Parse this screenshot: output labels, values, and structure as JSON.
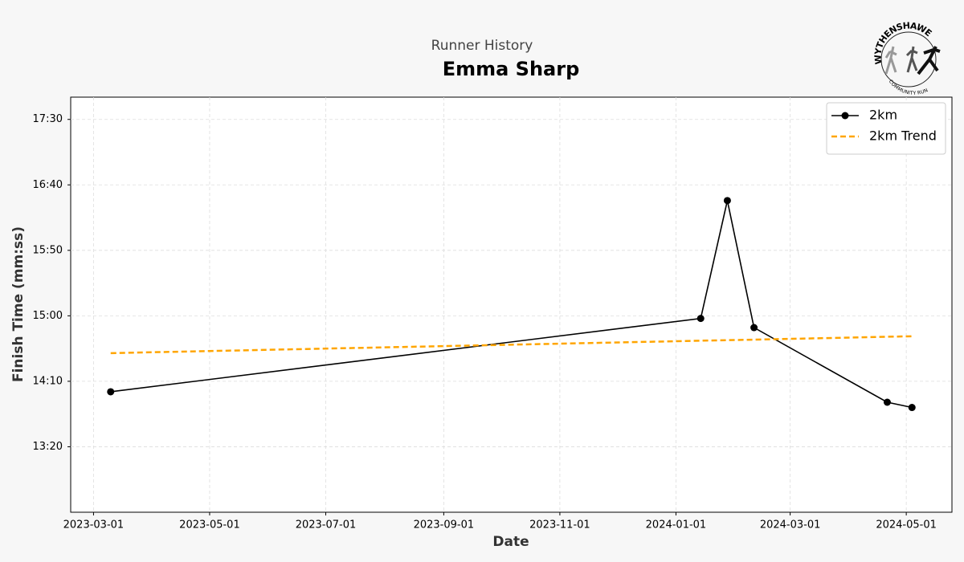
{
  "chart_data": {
    "type": "line",
    "title": "Runner History",
    "subtitle": "Emma Sharp",
    "x_label": "Date",
    "y_label": "Finish Time (mm:ss)",
    "x": [
      "2023-03-10",
      "2024-01-14",
      "2024-01-28",
      "2024-02-11",
      "2024-04-21",
      "2024-05-04"
    ],
    "series": [
      {
        "name": "2km",
        "color": "#000000",
        "style": "solid",
        "marker": true,
        "values": [
          842,
          898,
          988,
          891,
          834,
          830
        ]
      },
      {
        "name": "2km Trend",
        "color": "#ffa500",
        "style": "dashed",
        "marker": false,
        "values": [
          871.5,
          881.0,
          881.4,
          881.8,
          884.0,
          884.4
        ]
      }
    ],
    "xlim": [
      "2023-02-17",
      "2024-05-25"
    ],
    "xticks": [
      "2023-03-01",
      "2023-05-01",
      "2023-07-01",
      "2023-09-01",
      "2023-11-01",
      "2024-01-01",
      "2024-03-01",
      "2024-05-01"
    ],
    "ylim": [
      750,
      1067
    ],
    "yticks": [
      {
        "value": 800,
        "label": "13:20"
      },
      {
        "value": 850,
        "label": "14:10"
      },
      {
        "value": 900,
        "label": "15:00"
      },
      {
        "value": 950,
        "label": "15:50"
      },
      {
        "value": 1000,
        "label": "16:40"
      },
      {
        "value": 1050,
        "label": "17:30"
      }
    ],
    "grid": true,
    "legend": "upper right"
  },
  "logo_text": [
    "WYTHENSHAWE",
    "COMMUNITY RUN"
  ]
}
